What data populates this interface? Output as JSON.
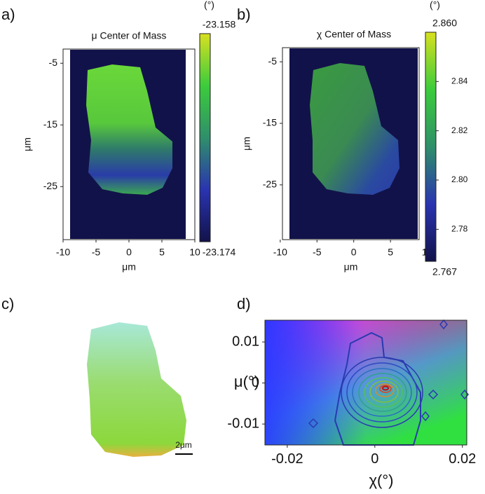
{
  "chart_data": [
    {
      "type": "heatmap",
      "panel": "a)",
      "title": "μ Center of Mass",
      "xlabel": "μm",
      "ylabel": "μm",
      "xlim": [
        -10,
        10
      ],
      "xticks": [
        -10,
        -5,
        0,
        5,
        10
      ],
      "ylim": [
        -33.6,
        -2.7
      ],
      "yticks": [
        -5,
        -15,
        -25
      ],
      "colorbar": {
        "unit": "(°)",
        "clim": [
          -23.174,
          -23.158
        ],
        "cticks": [
          -23.174,
          -23.158
        ],
        "colormap": [
          "#12124a",
          "#2a34b0",
          "#2f8f6a",
          "#3ccc3c",
          "#d8e020"
        ]
      }
    },
    {
      "type": "heatmap",
      "panel": "b)",
      "title": "χ  Center of Mass",
      "xlabel": "μm",
      "ylabel": "μm",
      "xlim": [
        -9.7,
        8.9
      ],
      "xticks": [
        -10,
        -5,
        0,
        5,
        10
      ],
      "ylim": [
        -33.9,
        -2.7
      ],
      "yticks": [
        -5,
        -15,
        -25
      ],
      "colorbar": {
        "unit": "(°)",
        "clim": [
          2.767,
          2.86
        ],
        "cticks": [
          2.767,
          2.78,
          {
            "value": 2.8,
            "label": "2.80"
          },
          2.82,
          2.84,
          {
            "value": 2.86,
            "label": "2.860"
          }
        ],
        "colormap": [
          "#12124a",
          "#2a34b0",
          "#2f8f6a",
          "#3ccc3c",
          "#d8e020"
        ]
      }
    },
    {
      "type": "image",
      "panel": "c)",
      "scalebar": "2μm"
    },
    {
      "type": "contour",
      "panel": "d)",
      "xlabel": "χ(°)",
      "ylabel": "μ(°)",
      "xlim": [
        -0.0251,
        0.021
      ],
      "xticks": [
        -0.02,
        0,
        0.02
      ],
      "ylim": [
        -0.0151,
        0.0153
      ],
      "yticks": [
        0.01,
        0,
        -0.01
      ]
    }
  ]
}
